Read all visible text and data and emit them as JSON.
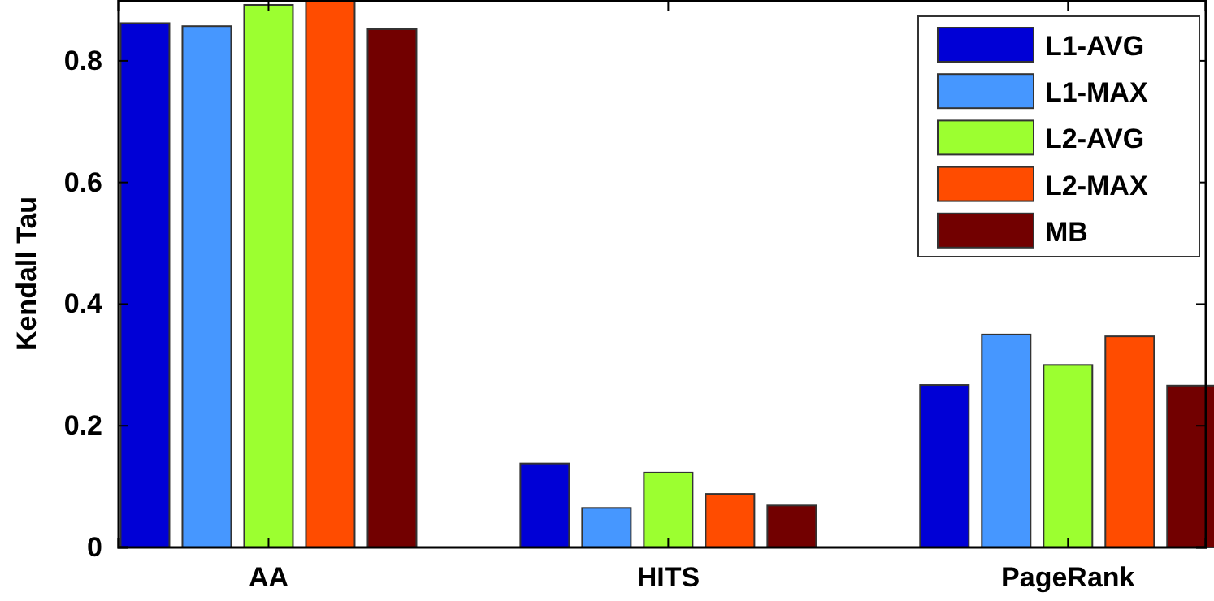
{
  "chart_data": {
    "type": "bar",
    "ylabel": "Kendall Tau",
    "categories": [
      "AA",
      "HITS",
      "PageRank"
    ],
    "series": [
      {
        "name": "L1-AVG",
        "color": "#0000d6",
        "values": [
          0.862,
          0.138,
          0.267
        ]
      },
      {
        "name": "L1-MAX",
        "color": "#4697ff",
        "values": [
          0.857,
          0.065,
          0.35
        ]
      },
      {
        "name": "L2-AVG",
        "color": "#9cff30",
        "values": [
          0.892,
          0.123,
          0.3
        ]
      },
      {
        "name": "L2-MAX",
        "color": "#ff4c00",
        "values": [
          0.898,
          0.088,
          0.347
        ]
      },
      {
        "name": "MB",
        "color": "#720000",
        "values": [
          0.852,
          0.069,
          0.266
        ]
      }
    ],
    "ylim": [
      0,
      0.9
    ],
    "yticks": [
      0,
      0.2,
      0.4,
      0.6,
      0.8
    ],
    "grid": false,
    "legend": "top right"
  }
}
